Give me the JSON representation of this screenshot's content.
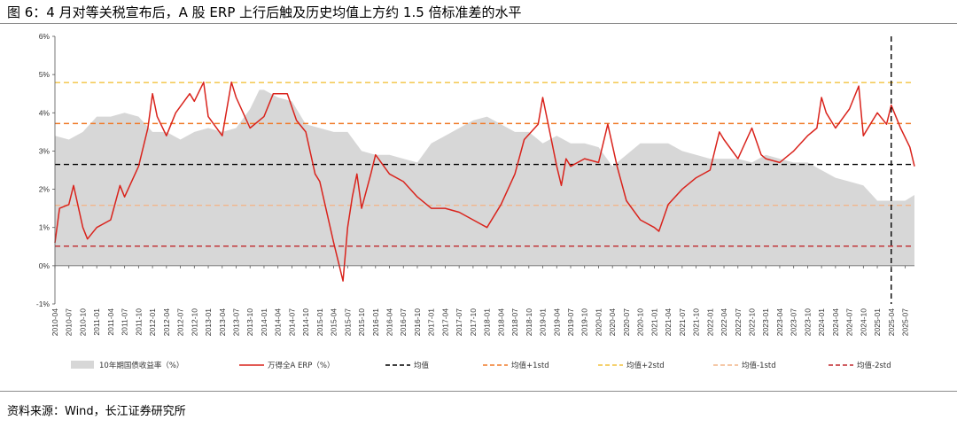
{
  "header": {
    "title": "图 6：4 月对等关税宣布后，A 股 ERP 上行后触及历史均值上方约 1.5 倍标准差的水平"
  },
  "footer": {
    "source": "资料来源：Wind，长江证券研究所"
  },
  "colors": {
    "erp": "#d9231c",
    "bond_fill": "#d7d7d7",
    "mean": "#000000",
    "plus1": "#f07b2a",
    "plus2": "#f2c23e",
    "minus1": "#f2b68a",
    "minus2": "#c0282e"
  },
  "chart_data": {
    "type": "line",
    "ylim": [
      -1,
      6
    ],
    "y_ticks": [
      "-1%",
      "0%",
      "1%",
      "2%",
      "3%",
      "4%",
      "5%",
      "6%"
    ],
    "y_tick_values": [
      -1,
      0,
      1,
      2,
      3,
      4,
      5,
      6
    ],
    "x_range": [
      "2010-04",
      "2025-09"
    ],
    "x_ticks": [
      "2010-04",
      "2010-07",
      "2010-10",
      "2011-01",
      "2011-04",
      "2011-07",
      "2011-10",
      "2012-01",
      "2012-04",
      "2012-07",
      "2012-10",
      "2013-01",
      "2013-04",
      "2013-07",
      "2013-10",
      "2014-01",
      "2014-04",
      "2014-07",
      "2014-10",
      "2015-01",
      "2015-04",
      "2015-07",
      "2015-10",
      "2016-01",
      "2016-04",
      "2016-07",
      "2016-10",
      "2017-01",
      "2017-04",
      "2017-07",
      "2017-10",
      "2018-01",
      "2018-04",
      "2018-07",
      "2018-10",
      "2019-01",
      "2019-04",
      "2019-07",
      "2019-10",
      "2020-01",
      "2020-04",
      "2020-07",
      "2020-10",
      "2021-01",
      "2021-04",
      "2021-07",
      "2021-10",
      "2022-01",
      "2022-04",
      "2022-07",
      "2022-10",
      "2023-01",
      "2023-04",
      "2023-07",
      "2023-10",
      "2024-01",
      "2024-04",
      "2024-07",
      "2024-10",
      "2025-01",
      "2025-04",
      "2025-07"
    ],
    "series": [
      {
        "name": "10年期国债收益率（%）",
        "type": "area",
        "points": [
          [
            "2010-04",
            3.4
          ],
          [
            "2010-07",
            3.3
          ],
          [
            "2010-10",
            3.5
          ],
          [
            "2011-01",
            3.9
          ],
          [
            "2011-04",
            3.9
          ],
          [
            "2011-07",
            4.0
          ],
          [
            "2011-10",
            3.9
          ],
          [
            "2012-01",
            3.5
          ],
          [
            "2012-04",
            3.5
          ],
          [
            "2012-07",
            3.3
          ],
          [
            "2012-10",
            3.5
          ],
          [
            "2013-01",
            3.6
          ],
          [
            "2013-04",
            3.5
          ],
          [
            "2013-07",
            3.6
          ],
          [
            "2013-10",
            4.1
          ],
          [
            "2013-12",
            4.6
          ],
          [
            "2014-01",
            4.6
          ],
          [
            "2014-04",
            4.4
          ],
          [
            "2014-07",
            4.3
          ],
          [
            "2014-10",
            3.7
          ],
          [
            "2015-01",
            3.6
          ],
          [
            "2015-04",
            3.5
          ],
          [
            "2015-07",
            3.5
          ],
          [
            "2015-10",
            3.0
          ],
          [
            "2016-01",
            2.9
          ],
          [
            "2016-04",
            2.9
          ],
          [
            "2016-07",
            2.8
          ],
          [
            "2016-10",
            2.7
          ],
          [
            "2017-01",
            3.2
          ],
          [
            "2017-04",
            3.4
          ],
          [
            "2017-07",
            3.6
          ],
          [
            "2017-10",
            3.8
          ],
          [
            "2018-01",
            3.9
          ],
          [
            "2018-04",
            3.7
          ],
          [
            "2018-07",
            3.5
          ],
          [
            "2018-10",
            3.5
          ],
          [
            "2019-01",
            3.2
          ],
          [
            "2019-04",
            3.4
          ],
          [
            "2019-07",
            3.2
          ],
          [
            "2019-10",
            3.2
          ],
          [
            "2020-01",
            3.1
          ],
          [
            "2020-04",
            2.6
          ],
          [
            "2020-07",
            2.9
          ],
          [
            "2020-10",
            3.2
          ],
          [
            "2021-01",
            3.2
          ],
          [
            "2021-04",
            3.2
          ],
          [
            "2021-07",
            3.0
          ],
          [
            "2021-10",
            2.9
          ],
          [
            "2022-01",
            2.8
          ],
          [
            "2022-04",
            2.8
          ],
          [
            "2022-07",
            2.8
          ],
          [
            "2022-10",
            2.7
          ],
          [
            "2023-01",
            2.9
          ],
          [
            "2023-04",
            2.8
          ],
          [
            "2023-07",
            2.7
          ],
          [
            "2023-10",
            2.7
          ],
          [
            "2024-01",
            2.5
          ],
          [
            "2024-04",
            2.3
          ],
          [
            "2024-07",
            2.2
          ],
          [
            "2024-10",
            2.1
          ],
          [
            "2025-01",
            1.7
          ],
          [
            "2025-04",
            1.7
          ],
          [
            "2025-07",
            1.7
          ],
          [
            "2025-09",
            1.85
          ]
        ]
      },
      {
        "name": "万得全A ERP（%）",
        "type": "line",
        "points": [
          [
            "2010-04",
            0.6
          ],
          [
            "2010-05",
            1.5
          ],
          [
            "2010-07",
            1.6
          ],
          [
            "2010-08",
            2.1
          ],
          [
            "2010-10",
            1.0
          ],
          [
            "2010-11",
            0.7
          ],
          [
            "2011-01",
            1.0
          ],
          [
            "2011-04",
            1.2
          ],
          [
            "2011-06",
            2.1
          ],
          [
            "2011-07",
            1.8
          ],
          [
            "2011-10",
            2.6
          ],
          [
            "2011-12",
            3.6
          ],
          [
            "2012-01",
            4.5
          ],
          [
            "2012-02",
            3.9
          ],
          [
            "2012-04",
            3.4
          ],
          [
            "2012-06",
            4.0
          ],
          [
            "2012-09",
            4.5
          ],
          [
            "2012-10",
            4.3
          ],
          [
            "2012-12",
            4.8
          ],
          [
            "2013-01",
            3.9
          ],
          [
            "2013-04",
            3.4
          ],
          [
            "2013-06",
            4.8
          ],
          [
            "2013-07",
            4.4
          ],
          [
            "2013-10",
            3.6
          ],
          [
            "2014-01",
            3.9
          ],
          [
            "2014-03",
            4.5
          ],
          [
            "2014-06",
            4.5
          ],
          [
            "2014-08",
            3.8
          ],
          [
            "2014-10",
            3.5
          ],
          [
            "2014-12",
            2.4
          ],
          [
            "2015-01",
            2.2
          ],
          [
            "2015-04",
            0.6
          ],
          [
            "2015-06",
            -0.4
          ],
          [
            "2015-07",
            1.0
          ],
          [
            "2015-08",
            1.8
          ],
          [
            "2015-09",
            2.4
          ],
          [
            "2015-10",
            1.5
          ],
          [
            "2015-12",
            2.4
          ],
          [
            "2016-01",
            2.9
          ],
          [
            "2016-04",
            2.4
          ],
          [
            "2016-07",
            2.2
          ],
          [
            "2016-10",
            1.8
          ],
          [
            "2017-01",
            1.5
          ],
          [
            "2017-04",
            1.5
          ],
          [
            "2017-07",
            1.4
          ],
          [
            "2017-10",
            1.2
          ],
          [
            "2018-01",
            1.0
          ],
          [
            "2018-04",
            1.6
          ],
          [
            "2018-07",
            2.4
          ],
          [
            "2018-09",
            3.3
          ],
          [
            "2018-12",
            3.7
          ],
          [
            "2019-01",
            4.4
          ],
          [
            "2019-02",
            3.8
          ],
          [
            "2019-04",
            2.6
          ],
          [
            "2019-05",
            2.1
          ],
          [
            "2019-06",
            2.8
          ],
          [
            "2019-07",
            2.6
          ],
          [
            "2019-10",
            2.8
          ],
          [
            "2020-01",
            2.7
          ],
          [
            "2020-03",
            3.7
          ],
          [
            "2020-05",
            2.6
          ],
          [
            "2020-07",
            1.7
          ],
          [
            "2020-10",
            1.2
          ],
          [
            "2021-01",
            1.0
          ],
          [
            "2021-02",
            0.9
          ],
          [
            "2021-04",
            1.6
          ],
          [
            "2021-07",
            2.0
          ],
          [
            "2021-10",
            2.3
          ],
          [
            "2022-01",
            2.5
          ],
          [
            "2022-03",
            3.5
          ],
          [
            "2022-04",
            3.3
          ],
          [
            "2022-07",
            2.8
          ],
          [
            "2022-10",
            3.6
          ],
          [
            "2022-12",
            2.9
          ],
          [
            "2023-01",
            2.8
          ],
          [
            "2023-04",
            2.7
          ],
          [
            "2023-07",
            3.0
          ],
          [
            "2023-10",
            3.4
          ],
          [
            "2023-12",
            3.6
          ],
          [
            "2024-01",
            4.4
          ],
          [
            "2024-02",
            4.0
          ],
          [
            "2024-04",
            3.6
          ],
          [
            "2024-07",
            4.1
          ],
          [
            "2024-09",
            4.7
          ],
          [
            "2024-10",
            3.4
          ],
          [
            "2024-12",
            3.8
          ],
          [
            "2025-01",
            4.0
          ],
          [
            "2025-03",
            3.7
          ],
          [
            "2025-04",
            4.2
          ],
          [
            "2025-06",
            3.6
          ],
          [
            "2025-08",
            3.1
          ],
          [
            "2025-09",
            2.6
          ]
        ]
      },
      {
        "name": "均值",
        "type": "hline",
        "value": 2.65
      },
      {
        "name": "均值+1std",
        "type": "hline",
        "value": 3.72
      },
      {
        "name": "均值+2std",
        "type": "hline",
        "value": 4.79
      },
      {
        "name": "均值-1std",
        "type": "hline",
        "value": 1.58
      },
      {
        "name": "均值-2std",
        "type": "hline",
        "value": 0.51
      }
    ],
    "annotations": [
      {
        "type": "vline",
        "x": "2025-04",
        "style": "dashed"
      }
    ],
    "legend_position": "bottom",
    "grid": false
  }
}
